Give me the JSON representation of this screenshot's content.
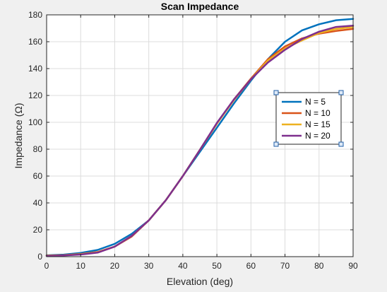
{
  "chart_data": {
    "type": "line",
    "title": "Scan Impedance",
    "xlabel": "Elevation (deg)",
    "ylabel": "Impedance (Ω)",
    "xlim": [
      0,
      90
    ],
    "ylim": [
      0,
      180
    ],
    "xticks": [
      0,
      10,
      20,
      30,
      40,
      50,
      60,
      70,
      80,
      90
    ],
    "yticks": [
      0,
      20,
      40,
      60,
      80,
      100,
      120,
      140,
      160,
      180
    ],
    "grid": true,
    "legend_position": "right",
    "x": [
      0,
      5,
      10,
      15,
      20,
      25,
      30,
      35,
      40,
      45,
      50,
      55,
      60,
      65,
      70,
      75,
      80,
      85,
      90
    ],
    "series": [
      {
        "name": "N = 5",
        "color": "#0072BD",
        "values": [
          1,
          1.5,
          2.8,
          5,
          9.5,
          17,
          27,
          42,
          60,
          78,
          96,
          114,
          131,
          147,
          160,
          168.5,
          173,
          176,
          177
        ]
      },
      {
        "name": "N = 10",
        "color": "#D95319",
        "values": [
          0.8,
          1.1,
          2,
          3.5,
          7.5,
          15,
          27,
          42,
          60,
          79.5,
          99,
          117,
          132.5,
          147,
          156.5,
          162.5,
          166,
          168,
          169.5
        ]
      },
      {
        "name": "N = 15",
        "color": "#EDB120",
        "values": [
          0.6,
          1,
          1.8,
          3.2,
          7.5,
          15.5,
          27,
          42,
          60,
          79.5,
          99,
          116.5,
          132,
          146,
          155,
          161,
          166.5,
          169.5,
          171
        ]
      },
      {
        "name": "N = 20",
        "color": "#7E2F8E",
        "values": [
          0.5,
          0.9,
          1.6,
          3,
          7.5,
          15.5,
          27,
          42,
          60,
          79.5,
          99.5,
          117,
          132,
          144.5,
          154,
          162,
          167.5,
          171,
          172
        ]
      }
    ]
  }
}
